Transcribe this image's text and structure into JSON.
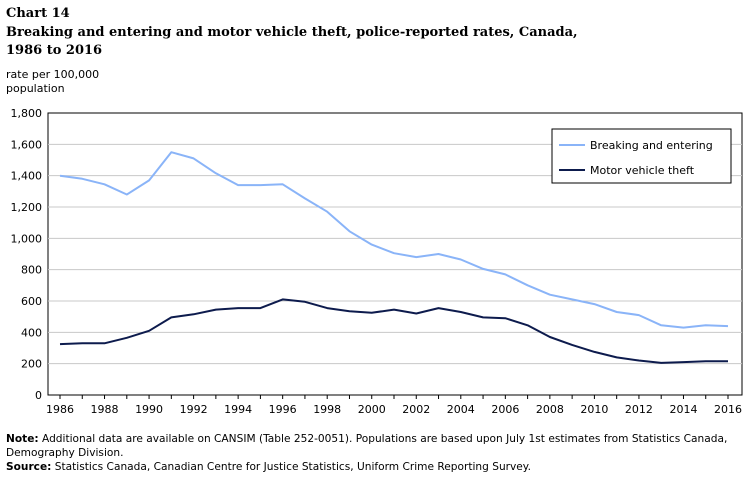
{
  "header": {
    "chart_number": "Chart 14",
    "title": "Breaking and entering and motor vehicle theft, police-reported rates, Canada, 1986 to 2016"
  },
  "chart_data": {
    "type": "line",
    "ylabel": "rate per 100,000 population",
    "xlabel": "",
    "ylim": [
      0,
      1800
    ],
    "yticks": [
      "0",
      "200",
      "400",
      "600",
      "800",
      "1,000",
      "1,200",
      "1,400",
      "1,600",
      "1,800"
    ],
    "ytick_values": [
      0,
      200,
      400,
      600,
      800,
      1000,
      1200,
      1400,
      1600,
      1800
    ],
    "x": [
      1986,
      1987,
      1988,
      1989,
      1990,
      1991,
      1992,
      1993,
      1994,
      1995,
      1996,
      1997,
      1998,
      1999,
      2000,
      2001,
      2002,
      2003,
      2004,
      2005,
      2006,
      2007,
      2008,
      2009,
      2010,
      2011,
      2012,
      2013,
      2014,
      2015,
      2016
    ],
    "xticks": [
      1986,
      1988,
      1990,
      1992,
      1994,
      1996,
      1998,
      2000,
      2002,
      2004,
      2006,
      2008,
      2010,
      2012,
      2014,
      2016
    ],
    "grid": "horizontal",
    "legend": "top-right",
    "series": [
      {
        "name": "Breaking and entering",
        "color": "#8ab4f8",
        "values": [
          1400,
          1380,
          1345,
          1280,
          1370,
          1550,
          1510,
          1415,
          1340,
          1340,
          1345,
          1255,
          1170,
          1045,
          960,
          905,
          880,
          900,
          865,
          805,
          770,
          700,
          640,
          610,
          580,
          530,
          510,
          445,
          430,
          445,
          440
        ]
      },
      {
        "name": "Motor vehicle theft",
        "color": "#0d1b4d",
        "values": [
          325,
          330,
          330,
          365,
          410,
          495,
          515,
          545,
          555,
          555,
          610,
          595,
          555,
          535,
          525,
          545,
          520,
          555,
          530,
          495,
          490,
          445,
          370,
          320,
          275,
          240,
          220,
          205,
          210,
          215,
          215
        ]
      }
    ]
  },
  "notes": {
    "note_label": "Note:",
    "note_text": " Additional data are available on CANSIM (Table 252-0051). Populations are based upon July 1st estimates from Statistics Canada, Demography Division.",
    "source_label": "Source:",
    "source_text": " Statistics Canada, Canadian Centre for Justice Statistics, Uniform Crime Reporting Survey."
  }
}
